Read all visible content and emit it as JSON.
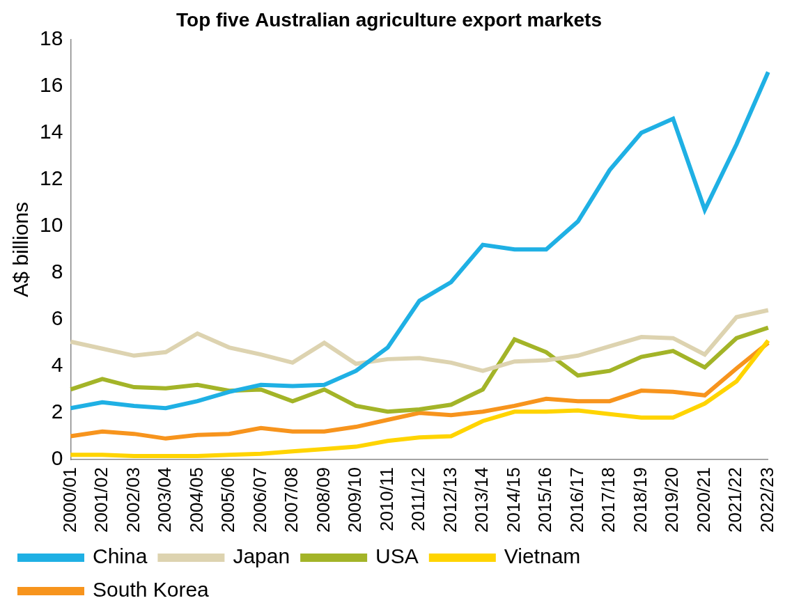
{
  "chart_data": {
    "type": "line",
    "title": "Top five Australian agriculture export markets",
    "y_label": "A$ billions",
    "categories": [
      "2000/01",
      "2001/02",
      "2002/03",
      "2003/04",
      "2004/05",
      "2005/06",
      "2006/07",
      "2007/08",
      "2008/09",
      "2009/10",
      "2010/11",
      "2011/12",
      "2012/13",
      "2013/14",
      "2014/15",
      "2015/16",
      "2016/17",
      "2017/18",
      "2018/19",
      "2019/20",
      "2020/21",
      "2021/22",
      "2022/23"
    ],
    "series": [
      {
        "name": "China",
        "color": "#1fb0e4",
        "values": [
          2.2,
          2.45,
          2.3,
          2.2,
          2.5,
          2.9,
          3.2,
          3.15,
          3.2,
          3.8,
          4.8,
          6.8,
          7.6,
          9.2,
          9.0,
          9.0,
          10.2,
          12.4,
          14.0,
          14.6,
          10.7,
          13.5,
          16.6
        ]
      },
      {
        "name": "Japan",
        "color": "#ddd3b0",
        "values": [
          5.05,
          4.75,
          4.45,
          4.6,
          5.4,
          4.8,
          4.5,
          4.15,
          5.0,
          4.1,
          4.3,
          4.35,
          4.15,
          3.8,
          4.2,
          4.25,
          4.45,
          4.85,
          5.25,
          5.2,
          4.5,
          6.1,
          6.4
        ]
      },
      {
        "name": "USA",
        "color": "#a3b428",
        "values": [
          3.0,
          3.45,
          3.1,
          3.05,
          3.2,
          2.95,
          3.0,
          2.5,
          3.0,
          2.3,
          2.05,
          2.15,
          2.35,
          3.0,
          5.15,
          4.6,
          3.6,
          3.8,
          4.4,
          4.65,
          3.95,
          5.2,
          5.65
        ]
      },
      {
        "name": "Vietnam",
        "color": "#ffd400",
        "values": [
          0.2,
          0.2,
          0.15,
          0.15,
          0.15,
          0.2,
          0.25,
          0.35,
          0.45,
          0.55,
          0.8,
          0.95,
          1.0,
          1.65,
          2.05,
          2.05,
          2.1,
          1.95,
          1.8,
          1.8,
          2.4,
          3.35,
          5.1
        ]
      },
      {
        "name": "South Korea",
        "color": "#f7941d",
        "values": [
          1.0,
          1.2,
          1.1,
          0.9,
          1.05,
          1.1,
          1.35,
          1.2,
          1.2,
          1.4,
          1.7,
          2.0,
          1.9,
          2.05,
          2.3,
          2.6,
          2.5,
          2.5,
          2.95,
          2.9,
          2.75,
          3.9,
          5.0
        ]
      }
    ],
    "ylim": [
      0,
      18
    ],
    "yticks": [
      0,
      2,
      4,
      6,
      8,
      10,
      12,
      14,
      16,
      18
    ],
    "grid": false,
    "legend": "bottom",
    "marker": "none"
  }
}
